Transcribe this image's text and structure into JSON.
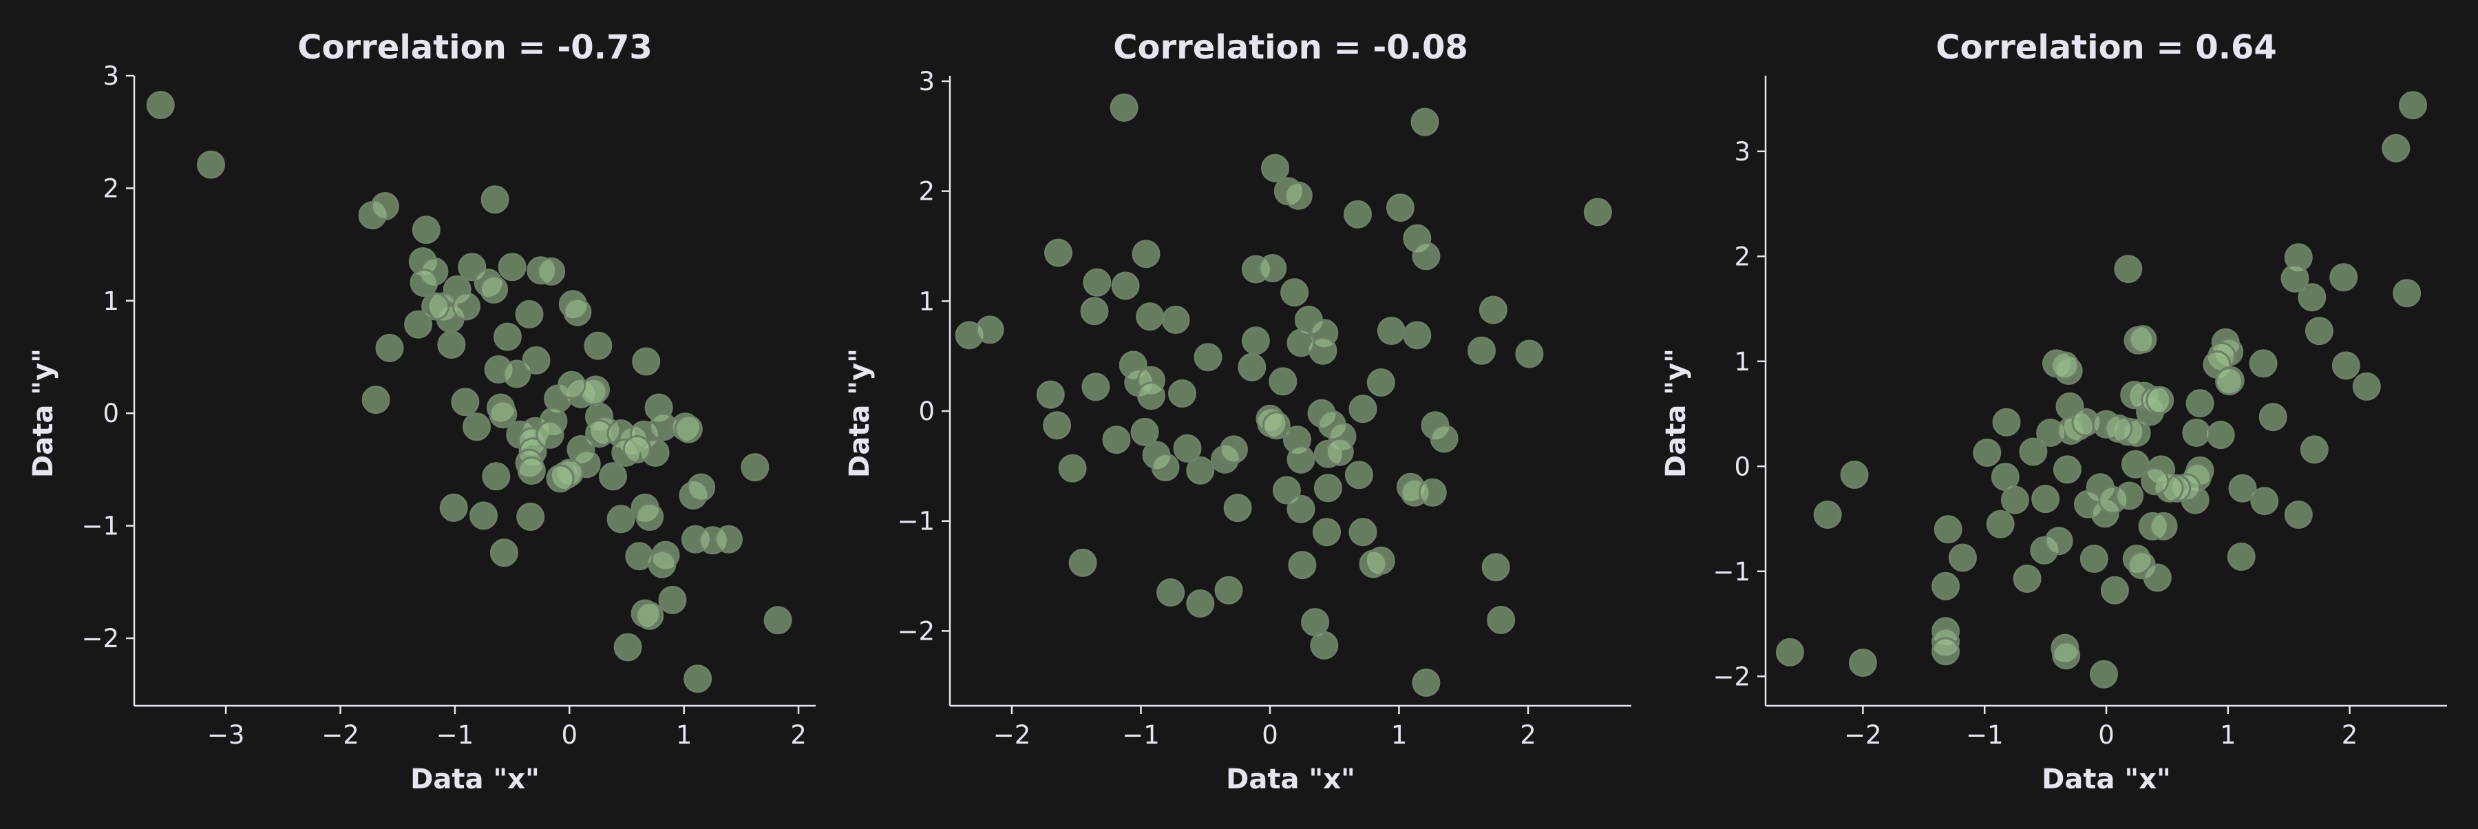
{
  "colors": {
    "background": "#171717",
    "marker_fill": "#9bbf8f",
    "marker_fill_opacity": 0.6,
    "marker_edge": "#6b7f66",
    "text": "#e6e6f0"
  },
  "chart_data": [
    {
      "type": "scatter",
      "title": "Correlation = -0.73",
      "xlabel": "Data \"x\"",
      "ylabel": "Data \"y\"",
      "xlim": [
        -3.8,
        2.15
      ],
      "ylim": [
        -2.6,
        3.0
      ],
      "xticks": [
        -3,
        -2,
        -1,
        0,
        1,
        2
      ],
      "yticks": [
        -2,
        -1,
        0,
        1,
        2,
        3
      ],
      "xtick_labels": [
        "−3",
        "−2",
        "−1",
        "0",
        "1",
        "2"
      ],
      "ytick_labels": [
        "−2",
        "−1",
        "0",
        "1",
        "2",
        "3"
      ],
      "grid": false,
      "points": [
        [
          -3.57,
          2.74
        ],
        [
          -3.13,
          2.21
        ],
        [
          -1.72,
          1.76
        ],
        [
          -1.61,
          1.84
        ],
        [
          -0.65,
          1.9
        ],
        [
          -1.25,
          1.63
        ],
        [
          -1.28,
          1.35
        ],
        [
          -1.18,
          1.26
        ],
        [
          -0.98,
          1.1
        ],
        [
          -0.85,
          1.3
        ],
        [
          -0.71,
          1.16
        ],
        [
          -0.66,
          1.1
        ],
        [
          -0.5,
          1.3
        ],
        [
          -0.25,
          1.27
        ],
        [
          -0.16,
          1.26
        ],
        [
          -1.27,
          1.16
        ],
        [
          -1.1,
          0.95
        ],
        [
          -1.32,
          0.79
        ],
        [
          -1.04,
          0.84
        ],
        [
          -0.9,
          0.95
        ],
        [
          -1.17,
          0.95
        ],
        [
          -1.57,
          0.58
        ],
        [
          -1.03,
          0.61
        ],
        [
          -0.54,
          0.68
        ],
        [
          -0.35,
          0.88
        ],
        [
          0.03,
          0.97
        ],
        [
          0.07,
          0.9
        ],
        [
          0.25,
          0.6
        ],
        [
          -0.62,
          0.39
        ],
        [
          -0.46,
          0.35
        ],
        [
          -0.29,
          0.47
        ],
        [
          0.1,
          0.17
        ],
        [
          0.23,
          0.21
        ],
        [
          0.21,
          0.19
        ],
        [
          0.67,
          0.46
        ],
        [
          -1.69,
          0.12
        ],
        [
          -0.91,
          0.1
        ],
        [
          -0.81,
          -0.12
        ],
        [
          -0.6,
          0.05
        ],
        [
          -0.58,
          -0.01
        ],
        [
          -0.43,
          -0.19
        ],
        [
          -0.1,
          0.13
        ],
        [
          -0.3,
          -0.16
        ],
        [
          -0.14,
          -0.07
        ],
        [
          0.02,
          0.25
        ],
        [
          0.26,
          -0.03
        ],
        [
          0.31,
          -0.15
        ],
        [
          0.26,
          -0.18
        ],
        [
          0.45,
          -0.18
        ],
        [
          0.55,
          -0.24
        ],
        [
          0.65,
          -0.19
        ],
        [
          0.78,
          0.05
        ],
        [
          0.82,
          -0.12
        ],
        [
          1.01,
          -0.12
        ],
        [
          1.04,
          -0.14
        ],
        [
          -0.64,
          -0.56
        ],
        [
          -0.33,
          -0.25
        ],
        [
          -0.32,
          -0.34
        ],
        [
          -0.17,
          -0.19
        ],
        [
          0.1,
          -0.32
        ],
        [
          0.15,
          -0.45
        ],
        [
          0.38,
          -0.56
        ],
        [
          0.49,
          -0.35
        ],
        [
          0.75,
          -0.35
        ],
        [
          0.59,
          -0.32
        ],
        [
          -0.35,
          -0.44
        ],
        [
          -0.33,
          -0.51
        ],
        [
          -0.03,
          -0.55
        ],
        [
          0.0,
          -0.53
        ],
        [
          -0.08,
          -0.58
        ],
        [
          -1.01,
          -0.84
        ],
        [
          -0.75,
          -0.91
        ],
        [
          -0.34,
          -0.92
        ],
        [
          0.45,
          -0.94
        ],
        [
          0.66,
          -0.84
        ],
        [
          0.7,
          -0.92
        ],
        [
          1.08,
          -0.73
        ],
        [
          1.15,
          -0.66
        ],
        [
          1.1,
          -1.12
        ],
        [
          1.25,
          -1.13
        ],
        [
          1.39,
          -1.12
        ],
        [
          0.84,
          -1.26
        ],
        [
          0.81,
          -1.34
        ],
        [
          -0.57,
          -1.24
        ],
        [
          0.61,
          -1.27
        ],
        [
          1.62,
          -0.48
        ],
        [
          1.82,
          -1.84
        ],
        [
          0.66,
          -1.78
        ],
        [
          0.7,
          -1.8
        ],
        [
          0.9,
          -1.66
        ],
        [
          0.51,
          -2.08
        ],
        [
          1.12,
          -2.36
        ]
      ]
    },
    {
      "type": "scatter",
      "title": "Correlation = -0.08",
      "xlabel": "Data \"x\"",
      "ylabel": "Data \"y\"",
      "xlim": [
        -2.48,
        2.8
      ],
      "ylim": [
        -2.68,
        3.05
      ],
      "xticks": [
        -2,
        -1,
        0,
        1,
        2
      ],
      "yticks": [
        -2,
        -1,
        0,
        1,
        2,
        3
      ],
      "xtick_labels": [
        "−2",
        "−1",
        "0",
        "1",
        "2"
      ],
      "ytick_labels": [
        "−2",
        "−1",
        "0",
        "1",
        "2",
        "3"
      ],
      "grid": false,
      "points": [
        [
          -1.13,
          2.76
        ],
        [
          0.04,
          2.21
        ],
        [
          0.14,
          2.0
        ],
        [
          0.22,
          1.96
        ],
        [
          1.2,
          2.63
        ],
        [
          2.54,
          1.81
        ],
        [
          0.68,
          1.79
        ],
        [
          1.01,
          1.85
        ],
        [
          1.14,
          1.57
        ],
        [
          1.21,
          1.41
        ],
        [
          -1.64,
          1.44
        ],
        [
          -0.96,
          1.43
        ],
        [
          -1.34,
          1.17
        ],
        [
          -1.12,
          1.14
        ],
        [
          -1.36,
          0.91
        ],
        [
          -0.11,
          1.29
        ],
        [
          0.02,
          1.3
        ],
        [
          0.19,
          1.08
        ],
        [
          -0.93,
          0.86
        ],
        [
          -0.73,
          0.83
        ],
        [
          0.3,
          0.83
        ],
        [
          0.42,
          0.71
        ],
        [
          0.41,
          0.55
        ],
        [
          0.24,
          0.62
        ],
        [
          0.94,
          0.73
        ],
        [
          1.14,
          0.69
        ],
        [
          1.73,
          0.92
        ],
        [
          1.64,
          0.55
        ],
        [
          2.01,
          0.52
        ],
        [
          -2.33,
          0.69
        ],
        [
          -2.17,
          0.74
        ],
        [
          -1.06,
          0.42
        ],
        [
          -1.02,
          0.26
        ],
        [
          -0.92,
          0.28
        ],
        [
          -0.48,
          0.49
        ],
        [
          -0.11,
          0.64
        ],
        [
          0.1,
          0.27
        ],
        [
          0.86,
          0.26
        ],
        [
          -0.14,
          0.4
        ],
        [
          -1.7,
          0.15
        ],
        [
          -1.35,
          0.22
        ],
        [
          -1.65,
          -0.13
        ],
        [
          -1.19,
          -0.26
        ],
        [
          -0.97,
          -0.19
        ],
        [
          -0.68,
          0.16
        ],
        [
          -0.92,
          0.14
        ],
        [
          0.01,
          -0.11
        ],
        [
          0.0,
          -0.07
        ],
        [
          0.05,
          -0.13
        ],
        [
          0.21,
          -0.26
        ],
        [
          0.4,
          -0.02
        ],
        [
          0.48,
          -0.12
        ],
        [
          0.56,
          -0.23
        ],
        [
          0.72,
          0.02
        ],
        [
          1.28,
          -0.13
        ],
        [
          1.35,
          -0.25
        ],
        [
          -1.53,
          -0.52
        ],
        [
          -0.88,
          -0.4
        ],
        [
          -0.64,
          -0.34
        ],
        [
          -0.81,
          -0.51
        ],
        [
          -0.54,
          -0.54
        ],
        [
          -0.35,
          -0.44
        ],
        [
          -0.28,
          -0.35
        ],
        [
          0.24,
          -0.44
        ],
        [
          0.45,
          -0.39
        ],
        [
          0.54,
          -0.37
        ],
        [
          0.69,
          -0.58
        ],
        [
          -0.25,
          -0.88
        ],
        [
          0.13,
          -0.72
        ],
        [
          0.24,
          -0.89
        ],
        [
          0.45,
          -0.7
        ],
        [
          1.09,
          -0.69
        ],
        [
          1.12,
          -0.74
        ],
        [
          1.26,
          -0.74
        ],
        [
          -1.45,
          -1.38
        ],
        [
          -0.77,
          -1.65
        ],
        [
          -0.54,
          -1.75
        ],
        [
          -0.32,
          -1.63
        ],
        [
          0.25,
          -1.4
        ],
        [
          0.44,
          -1.1
        ],
        [
          0.72,
          -1.1
        ],
        [
          0.86,
          -1.36
        ],
        [
          0.8,
          -1.39
        ],
        [
          1.75,
          -1.42
        ],
        [
          0.35,
          -1.92
        ],
        [
          0.42,
          -2.13
        ],
        [
          1.79,
          -1.9
        ],
        [
          1.21,
          -2.47
        ]
      ]
    },
    {
      "type": "scatter",
      "title": "Correlation = 0.64",
      "xlabel": "Data \"x\"",
      "ylabel": "Data \"y\"",
      "xlim": [
        -2.8,
        2.8
      ],
      "ylim": [
        -2.28,
        3.72
      ],
      "xticks": [
        -2,
        -1,
        0,
        1,
        2
      ],
      "yticks": [
        -2,
        -1,
        0,
        1,
        2,
        3
      ],
      "xtick_labels": [
        "−2",
        "−1",
        "0",
        "1",
        "2"
      ],
      "ytick_labels": [
        "−2",
        "−1",
        "0",
        "1",
        "2",
        "3"
      ],
      "grid": false,
      "points": [
        [
          2.52,
          3.44
        ],
        [
          2.38,
          3.03
        ],
        [
          2.47,
          1.65
        ],
        [
          1.58,
          1.99
        ],
        [
          1.55,
          1.79
        ],
        [
          1.69,
          1.61
        ],
        [
          1.95,
          1.8
        ],
        [
          1.75,
          1.29
        ],
        [
          1.97,
          0.96
        ],
        [
          2.14,
          0.76
        ],
        [
          1.71,
          0.16
        ],
        [
          1.37,
          0.47
        ],
        [
          1.58,
          -0.46
        ],
        [
          1.3,
          -0.33
        ],
        [
          1.12,
          -0.21
        ],
        [
          1.11,
          -0.86
        ],
        [
          1.29,
          0.98
        ],
        [
          0.98,
          1.18
        ],
        [
          1.01,
          1.09
        ],
        [
          0.95,
          1.05
        ],
        [
          0.91,
          0.97
        ],
        [
          1.02,
          0.82
        ],
        [
          1.01,
          0.81
        ],
        [
          0.77,
          0.6
        ],
        [
          0.94,
          0.3
        ],
        [
          0.74,
          0.32
        ],
        [
          0.77,
          -0.04
        ],
        [
          0.75,
          -0.1
        ],
        [
          0.73,
          -0.32
        ],
        [
          0.66,
          -0.2
        ],
        [
          0.58,
          -0.21
        ],
        [
          0.52,
          -0.21
        ],
        [
          0.45,
          -0.03
        ],
        [
          0.4,
          -0.14
        ],
        [
          0.36,
          0.52
        ],
        [
          0.31,
          0.67
        ],
        [
          0.23,
          0.68
        ],
        [
          0.4,
          0.63
        ],
        [
          0.44,
          0.63
        ],
        [
          0.18,
          0.33
        ],
        [
          0.25,
          0.32
        ],
        [
          0.24,
          0.02
        ],
        [
          0.26,
          1.2
        ],
        [
          0.3,
          1.21
        ],
        [
          0.18,
          1.88
        ],
        [
          0.25,
          -0.88
        ],
        [
          0.29,
          -0.94
        ],
        [
          0.38,
          -0.57
        ],
        [
          0.47,
          -0.57
        ],
        [
          0.42,
          -1.06
        ],
        [
          -0.05,
          -0.2
        ],
        [
          -0.15,
          -0.36
        ],
        [
          -0.01,
          -0.45
        ],
        [
          0.05,
          -0.32
        ],
        [
          0.19,
          -0.28
        ],
        [
          -0.1,
          -0.88
        ],
        [
          0.07,
          -1.18
        ],
        [
          -0.02,
          -1.98
        ],
        [
          -0.34,
          -1.73
        ],
        [
          -0.33,
          -1.8
        ],
        [
          -0.51,
          -0.8
        ],
        [
          -0.39,
          -0.71
        ],
        [
          -0.65,
          -1.07
        ],
        [
          -0.32,
          -0.03
        ],
        [
          -0.5,
          -0.31
        ],
        [
          -0.75,
          -0.32
        ],
        [
          -0.83,
          -0.1
        ],
        [
          -0.98,
          0.13
        ],
        [
          -0.6,
          0.14
        ],
        [
          -0.46,
          0.32
        ],
        [
          -0.3,
          0.57
        ],
        [
          -0.23,
          0.38
        ],
        [
          -0.29,
          0.34
        ],
        [
          -0.41,
          0.98
        ],
        [
          -0.31,
          0.91
        ],
        [
          -0.34,
          0.96
        ],
        [
          -0.17,
          0.42
        ],
        [
          0.0,
          0.4
        ],
        [
          0.1,
          0.36
        ],
        [
          -0.82,
          0.42
        ],
        [
          -0.87,
          -0.55
        ],
        [
          -1.18,
          -0.87
        ],
        [
          -1.32,
          -1.14
        ],
        [
          -1.3,
          -0.6
        ],
        [
          -1.32,
          -1.57
        ],
        [
          -1.32,
          -1.67
        ],
        [
          -1.32,
          -1.76
        ],
        [
          -2.29,
          -0.46
        ],
        [
          -2.07,
          -0.08
        ],
        [
          -2.0,
          -1.87
        ],
        [
          -2.6,
          -1.77
        ]
      ]
    }
  ]
}
